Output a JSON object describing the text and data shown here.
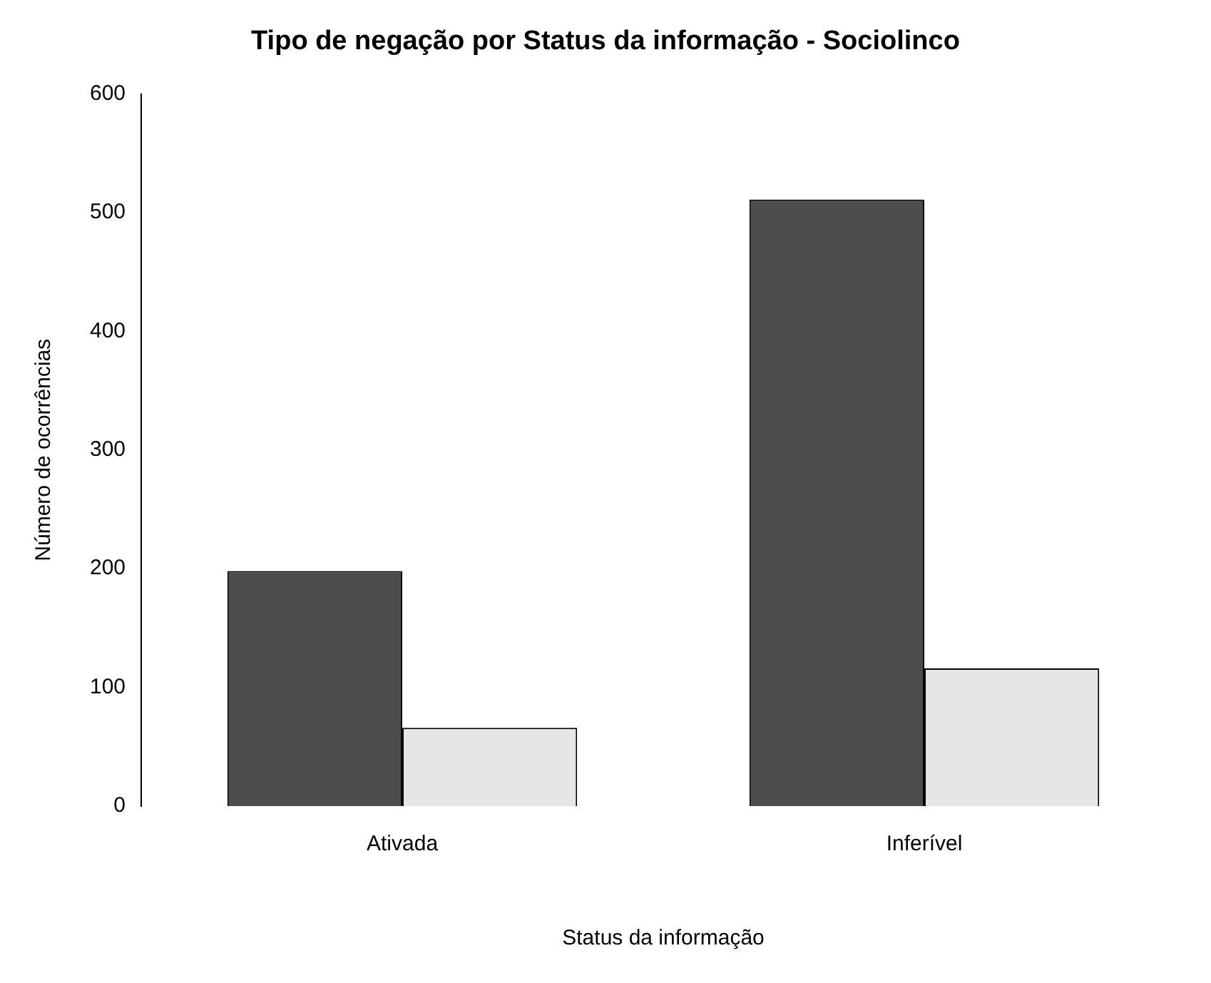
{
  "chart_data": {
    "type": "bar",
    "title": "Tipo de negação por Status da informação - Sociolinco",
    "xlabel": "Status da informação",
    "ylabel": "Número de ocorrências",
    "categories": [
      "Ativada",
      "Inferível"
    ],
    "series": [
      {
        "color": "#4d4d4d",
        "values": [
          198,
          511
        ]
      },
      {
        "color": "#e6e6e6",
        "values": [
          66,
          116
        ]
      }
    ],
    "ylim": [
      0,
      600
    ],
    "yticks": [
      0,
      100,
      200,
      300,
      400,
      500,
      600
    ],
    "grid": false,
    "legend": false
  }
}
